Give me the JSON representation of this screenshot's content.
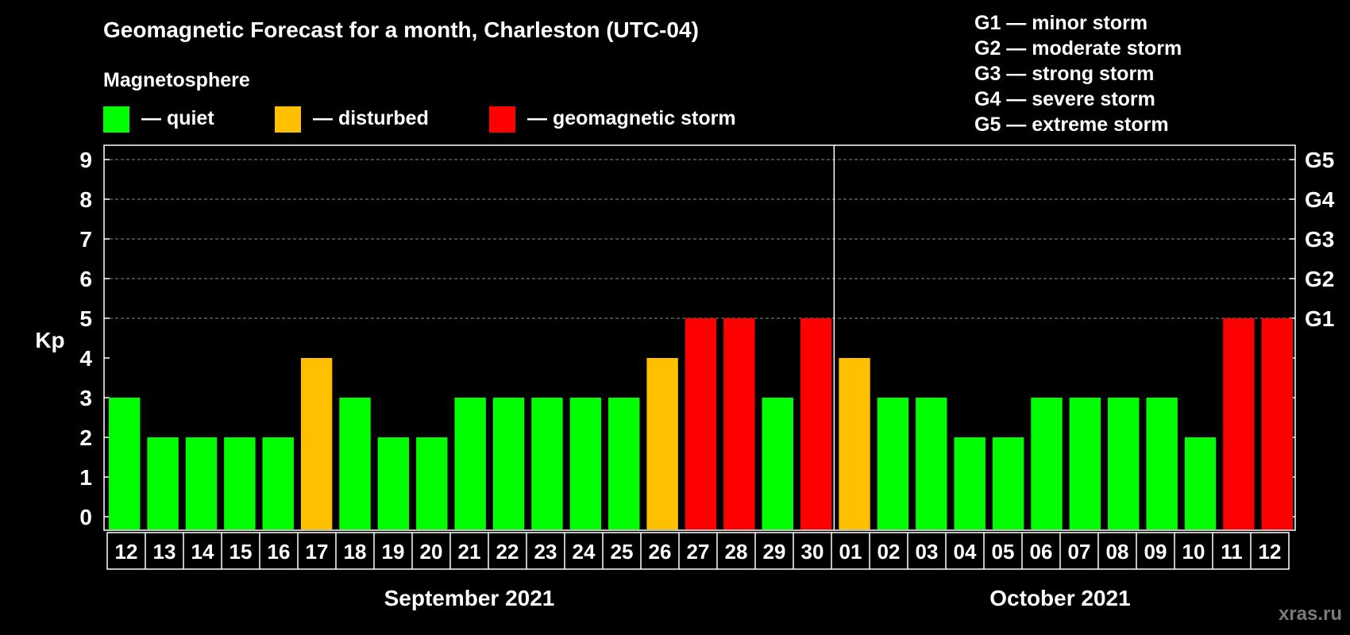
{
  "title": "Geomagnetic Forecast for a month, Charleston (UTC-04)",
  "legend": {
    "heading": "Magnetosphere",
    "items": [
      {
        "key": "quiet",
        "label": "— quiet",
        "color": "#00ff00"
      },
      {
        "key": "disturbed",
        "label": "— disturbed",
        "color": "#ffc000"
      },
      {
        "key": "storm",
        "label": "— geomagnetic storm",
        "color": "#ff0000"
      }
    ]
  },
  "storm_scale": [
    "G1 — minor storm",
    "G2 — moderate storm",
    "G3 — strong storm",
    "G4 — severe storm",
    "G5 — extreme storm"
  ],
  "watermark": "xras.ru",
  "chart_data": {
    "type": "bar",
    "ylabel": "Kp",
    "ylim": [
      0,
      9
    ],
    "yticks": [
      "0",
      "1",
      "2",
      "3",
      "4",
      "5",
      "6",
      "7",
      "8",
      "9"
    ],
    "right_ticks": [
      {
        "value": 5,
        "label": "G1"
      },
      {
        "value": 6,
        "label": "G2"
      },
      {
        "value": 7,
        "label": "G3"
      },
      {
        "value": 8,
        "label": "G4"
      },
      {
        "value": 9,
        "label": "G5"
      }
    ],
    "grid": "dashed at Kp 5–9",
    "categories": [
      "12",
      "13",
      "14",
      "15",
      "16",
      "17",
      "18",
      "19",
      "20",
      "21",
      "22",
      "23",
      "24",
      "25",
      "26",
      "27",
      "28",
      "29",
      "30",
      "01",
      "02",
      "03",
      "04",
      "05",
      "06",
      "07",
      "08",
      "09",
      "10",
      "11",
      "12"
    ],
    "values": [
      3,
      2,
      2,
      2,
      2,
      4,
      3,
      2,
      2,
      3,
      3,
      3,
      3,
      3,
      4,
      5,
      5,
      3,
      5,
      4,
      3,
      3,
      2,
      2,
      3,
      3,
      3,
      3,
      2,
      5,
      5
    ],
    "status": [
      "quiet",
      "quiet",
      "quiet",
      "quiet",
      "quiet",
      "disturbed",
      "quiet",
      "quiet",
      "quiet",
      "quiet",
      "quiet",
      "quiet",
      "quiet",
      "quiet",
      "disturbed",
      "storm",
      "storm",
      "quiet",
      "storm",
      "disturbed",
      "quiet",
      "quiet",
      "quiet",
      "quiet",
      "quiet",
      "quiet",
      "quiet",
      "quiet",
      "quiet",
      "storm",
      "storm"
    ],
    "months": [
      {
        "label": "September 2021",
        "count": 19
      },
      {
        "label": "October 2021",
        "count": 12
      }
    ]
  }
}
